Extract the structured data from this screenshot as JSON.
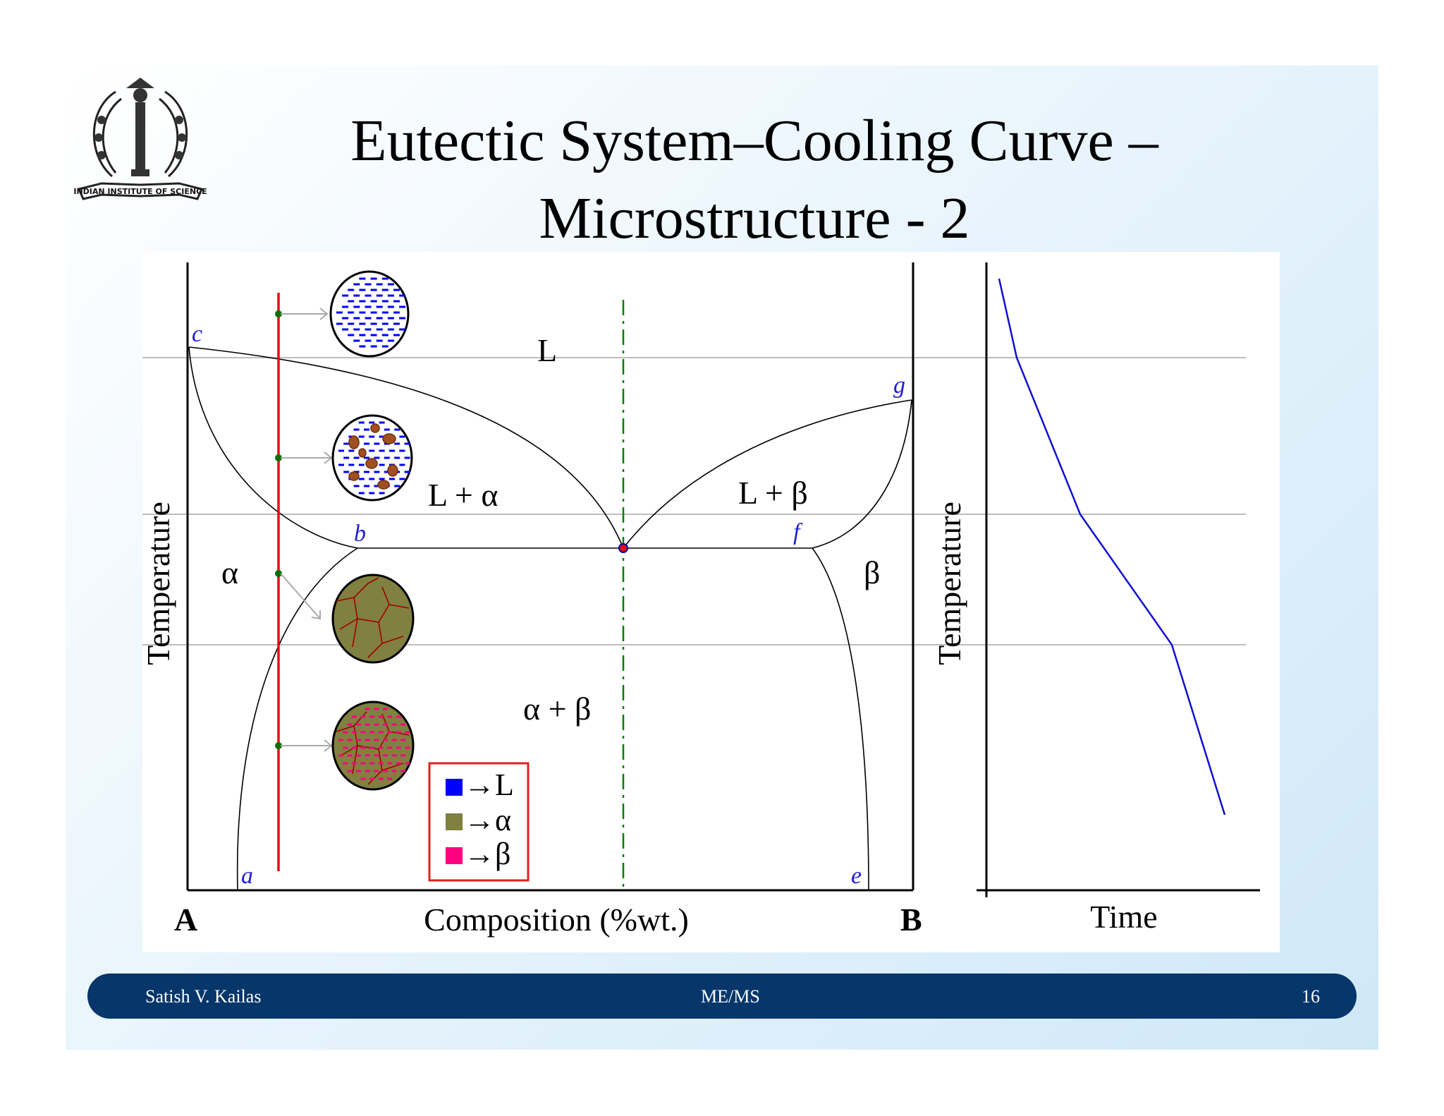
{
  "title": {
    "line1": "Eutectic System–Cooling Curve –",
    "line2": "Microstructure - 2"
  },
  "logo": {
    "icon": "indian-institute-of-science-seal",
    "text": "INDIAN INSTITUTE OF SCIENCE"
  },
  "phase_diagram": {
    "y_axis_label": "Temperature",
    "x_axis_label": "Composition (%wt.)",
    "left_component": "A",
    "right_component": "B",
    "region_labels": {
      "liquid": "L",
      "liquid_alpha": "L + α",
      "liquid_beta": "L + β",
      "alpha": "α",
      "beta": "β",
      "alpha_beta": "α + β"
    },
    "point_labels": {
      "a": "a",
      "b": "b",
      "c": "c",
      "e": "e",
      "f": "f",
      "g": "g"
    }
  },
  "legend": {
    "items": [
      {
        "swatch_color": "#0000ff",
        "label": "→L"
      },
      {
        "swatch_color": "#808040",
        "label": "→α"
      },
      {
        "swatch_color": "#ff0080",
        "label": "→β"
      }
    ]
  },
  "cooling_curve": {
    "y_axis_label": "Temperature",
    "x_axis_label": "Time"
  },
  "colors": {
    "composition_line": "#e01010",
    "eutectic_line": "#008000",
    "cooling_curve": "#1010d0",
    "label_blue": "#2020d0",
    "footer_bg": "#06366a"
  },
  "footer": {
    "author": "Satish V. Kailas",
    "course": "ME/MS",
    "page": "16"
  }
}
